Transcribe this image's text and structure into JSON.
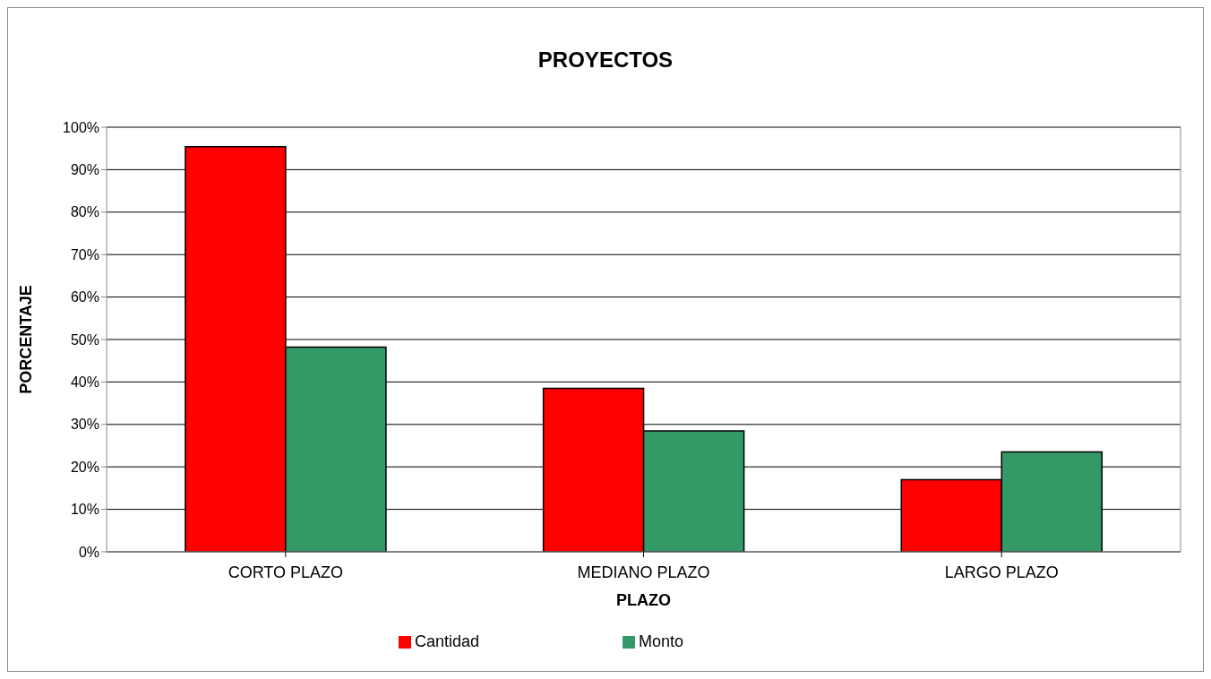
{
  "chart_data": {
    "type": "bar",
    "title": "PROYECTOS",
    "xlabel": "PLAZO",
    "ylabel": "PORCENTAJE",
    "categories": [
      "CORTO PLAZO",
      "MEDIANO PLAZO",
      "LARGO PLAZO"
    ],
    "series": [
      {
        "name": "Cantidad",
        "color": "#ff0000",
        "values": [
          95.4,
          38.5,
          17.0
        ]
      },
      {
        "name": "Monto",
        "color": "#339966",
        "values": [
          48.2,
          28.5,
          23.5
        ]
      }
    ],
    "ylim": [
      0,
      100
    ],
    "yticks": [
      {
        "value": 0,
        "label": "0%"
      },
      {
        "value": 10,
        "label": "10%"
      },
      {
        "value": 20,
        "label": "20%"
      },
      {
        "value": 30,
        "label": "30%"
      },
      {
        "value": 40,
        "label": "40%"
      },
      {
        "value": 50,
        "label": "50%"
      },
      {
        "value": 60,
        "label": "60%"
      },
      {
        "value": 70,
        "label": "70%"
      },
      {
        "value": 80,
        "label": "80%"
      },
      {
        "value": 90,
        "label": "90%"
      },
      {
        "value": 100,
        "label": "100%"
      }
    ],
    "grid": "y",
    "legend": "bottom"
  }
}
